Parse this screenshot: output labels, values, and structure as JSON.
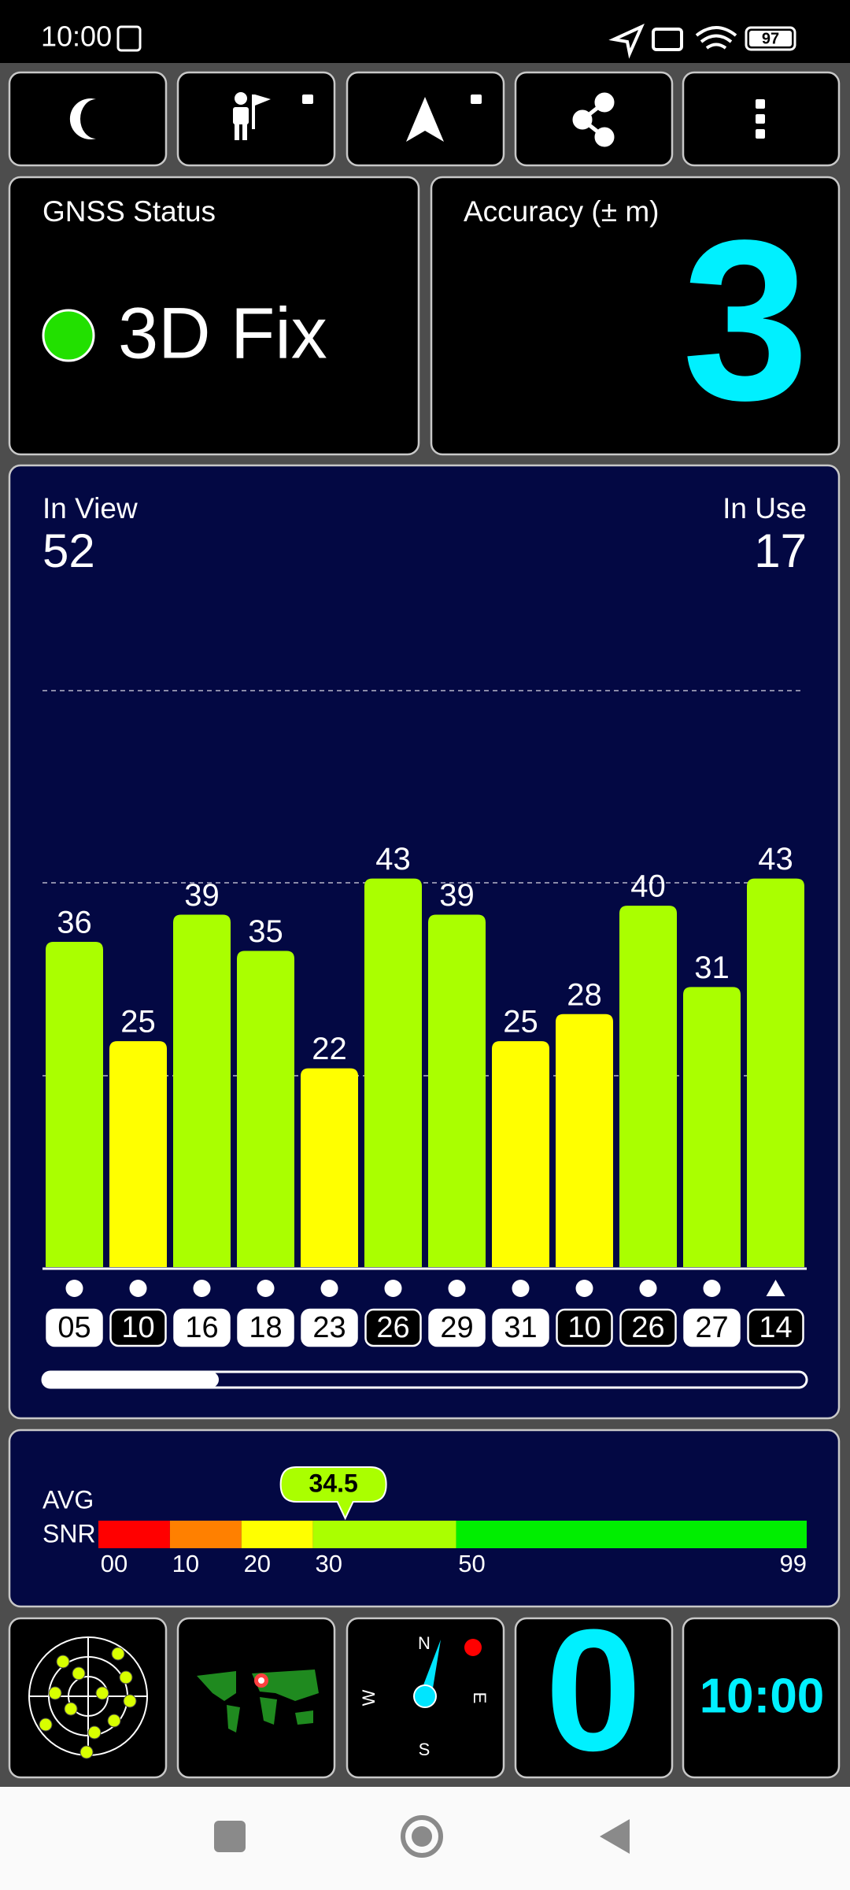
{
  "status_bar": {
    "time": "10:00",
    "battery": "97"
  },
  "gnss_status": {
    "label": "GNSS Status",
    "value": "3D Fix"
  },
  "accuracy": {
    "label": "Accuracy (± m)",
    "value": 3
  },
  "signal_panel": {
    "in_view_label": "In View",
    "in_view": 52,
    "in_use_label": "In Use",
    "in_use": 17,
    "satellites": [
      {
        "id": "05",
        "snr": 36,
        "color": "#aaff00",
        "in_use": true,
        "marker": "circle"
      },
      {
        "id": "10",
        "snr": 25,
        "color": "#ffff00",
        "in_use": false,
        "marker": "circle"
      },
      {
        "id": "16",
        "snr": 39,
        "color": "#aaff00",
        "in_use": true,
        "marker": "circle"
      },
      {
        "id": "18",
        "snr": 35,
        "color": "#aaff00",
        "in_use": true,
        "marker": "circle"
      },
      {
        "id": "23",
        "snr": 22,
        "color": "#ffff00",
        "in_use": true,
        "marker": "circle"
      },
      {
        "id": "26",
        "snr": 43,
        "color": "#aaff00",
        "in_use": false,
        "marker": "circle"
      },
      {
        "id": "29",
        "snr": 39,
        "color": "#aaff00",
        "in_use": true,
        "marker": "circle"
      },
      {
        "id": "31",
        "snr": 25,
        "color": "#ffff00",
        "in_use": true,
        "marker": "circle"
      },
      {
        "id": "10",
        "snr": 28,
        "color": "#ffff00",
        "in_use": false,
        "marker": "circle"
      },
      {
        "id": "26",
        "snr": 40,
        "color": "#aaff00",
        "in_use": false,
        "marker": "circle"
      },
      {
        "id": "27",
        "snr": 31,
        "color": "#aaff00",
        "in_use": true,
        "marker": "circle"
      },
      {
        "id": "14",
        "snr": 43,
        "color": "#aaff00",
        "in_use": false,
        "marker": "triangle"
      }
    ]
  },
  "avg_snr": {
    "label_line1": "AVG",
    "label_line2": "SNR",
    "value": 34.5,
    "xlim": [
      0,
      99
    ],
    "ticks": [
      {
        "value": 0,
        "label": "00"
      },
      10,
      20,
      30,
      50,
      99
    ],
    "segment_colors": [
      "#ff0000",
      "#ff8000",
      "#ffff00",
      "#aaff00",
      "#00ee00"
    ]
  },
  "tiles": {
    "compass": {
      "n": "N",
      "e": "E",
      "s": "S",
      "w": "W"
    },
    "count": 0,
    "clock": "10:00"
  }
}
